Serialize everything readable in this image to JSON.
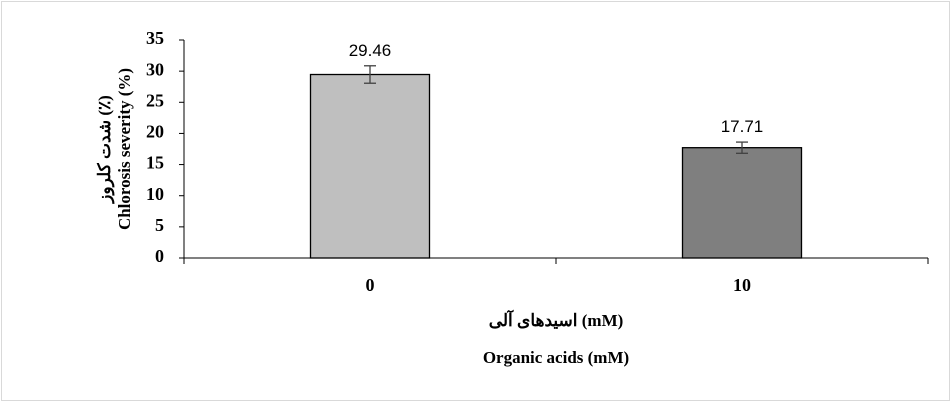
{
  "chart_data": {
    "type": "bar",
    "categories": [
      "0",
      "10"
    ],
    "values": [
      29.46,
      17.71
    ],
    "errors": [
      1.4,
      0.9
    ],
    "data_labels": [
      "29.46",
      "17.71"
    ],
    "bar_colors": [
      "#bfbfbf",
      "#7f7f7f"
    ],
    "ylim": [
      0,
      35
    ],
    "yticks": [
      "0",
      "5",
      "10",
      "15",
      "20",
      "25",
      "30",
      "35"
    ],
    "ylabel_en": "Chlorosis severity (%)",
    "ylabel_fa": "شدت کلروز (٪)",
    "xlabel_en": "Organic acids (mM)",
    "xlabel_fa": "اسیدهای آلی (mM)",
    "grid": false,
    "legend": "none"
  }
}
